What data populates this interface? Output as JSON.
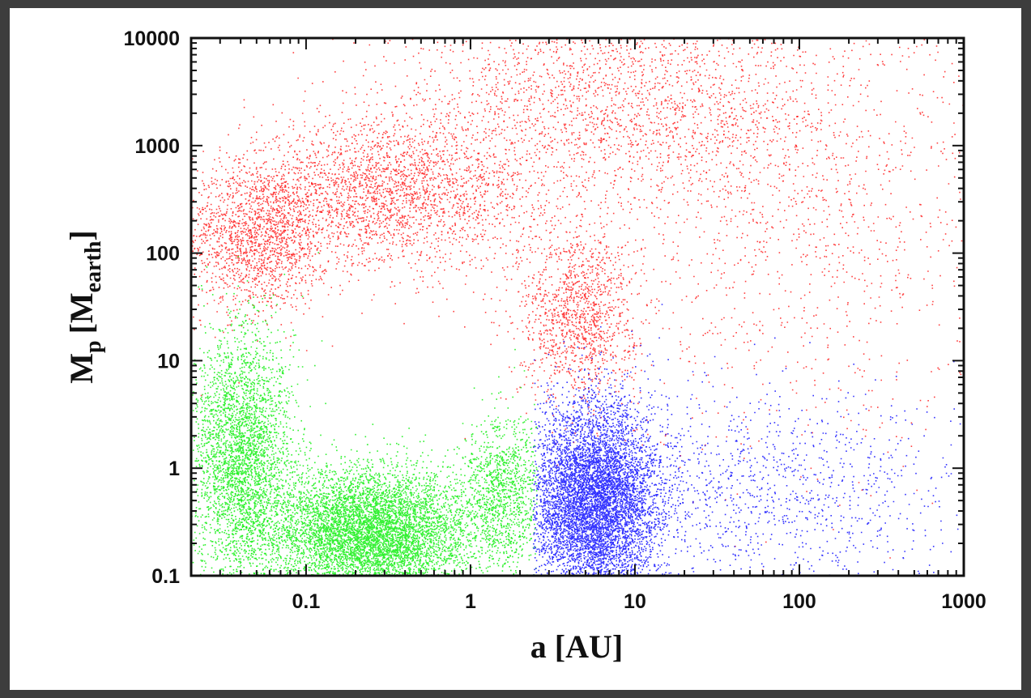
{
  "chart_data": {
    "type": "scatter",
    "title": "",
    "xlabel": "a [AU]",
    "ylabel": {
      "main": "M",
      "sub_p": "p",
      "open": "[M",
      "sub_earth": "earth",
      "close": "]"
    },
    "x_scale": "log",
    "y_scale": "log",
    "xlim": [
      0.02,
      1000
    ],
    "ylim": [
      0.1,
      10000
    ],
    "x_ticks": [
      "0.1",
      "1",
      "10",
      "100",
      "1000"
    ],
    "x_tick_values": [
      0.1,
      1,
      10,
      100,
      1000
    ],
    "y_ticks": [
      "0.1",
      "1",
      "10",
      "100",
      "1000",
      "10000"
    ],
    "y_tick_values": [
      0.1,
      1,
      10,
      100,
      1000,
      10000
    ],
    "grid": false,
    "legend": null,
    "series": [
      {
        "color": "#ff0000",
        "description_clusters": [
          {
            "log_a_center": -1.3,
            "log_a_spread": 0.22,
            "log_m_center": 2.15,
            "log_m_spread": 0.35,
            "weight": 0.18
          },
          {
            "log_a_center": -0.5,
            "log_a_spread": 0.45,
            "log_m_center": 2.55,
            "log_m_spread": 0.35,
            "weight": 0.28
          },
          {
            "log_a_center": 0.65,
            "log_a_spread": 0.18,
            "log_m_center": 1.45,
            "log_m_spread": 0.4,
            "weight": 0.14
          },
          {
            "log_a_center": 0.9,
            "log_a_spread": 0.7,
            "log_m_center": 3.4,
            "log_m_spread": 0.5,
            "weight": 0.25
          },
          {
            "log_a_center": 2.0,
            "log_a_spread": 0.7,
            "log_m_center": 2.4,
            "log_m_spread": 1.1,
            "weight": 0.15
          }
        ]
      },
      {
        "color": "#00ee00",
        "description_clusters": [
          {
            "log_a_center": -0.6,
            "log_a_spread": 0.32,
            "log_m_center": -0.6,
            "log_m_spread": 0.3,
            "weight": 0.6
          },
          {
            "log_a_center": -1.4,
            "log_a_spread": 0.15,
            "log_m_center": 0.1,
            "log_m_spread": 0.6,
            "weight": 0.3
          },
          {
            "log_a_center": 0.2,
            "log_a_spread": 0.12,
            "log_m_center": -0.2,
            "log_m_spread": 0.35,
            "weight": 0.1
          }
        ]
      },
      {
        "color": "#0000ff",
        "description_clusters": [
          {
            "log_a_center": 0.75,
            "log_a_spread": 0.2,
            "log_m_center": -0.3,
            "log_m_spread": 0.45,
            "weight": 0.85
          },
          {
            "log_a_center": 1.8,
            "log_a_spread": 0.6,
            "log_m_center": -0.2,
            "log_m_spread": 0.5,
            "weight": 0.15
          }
        ]
      }
    ]
  }
}
